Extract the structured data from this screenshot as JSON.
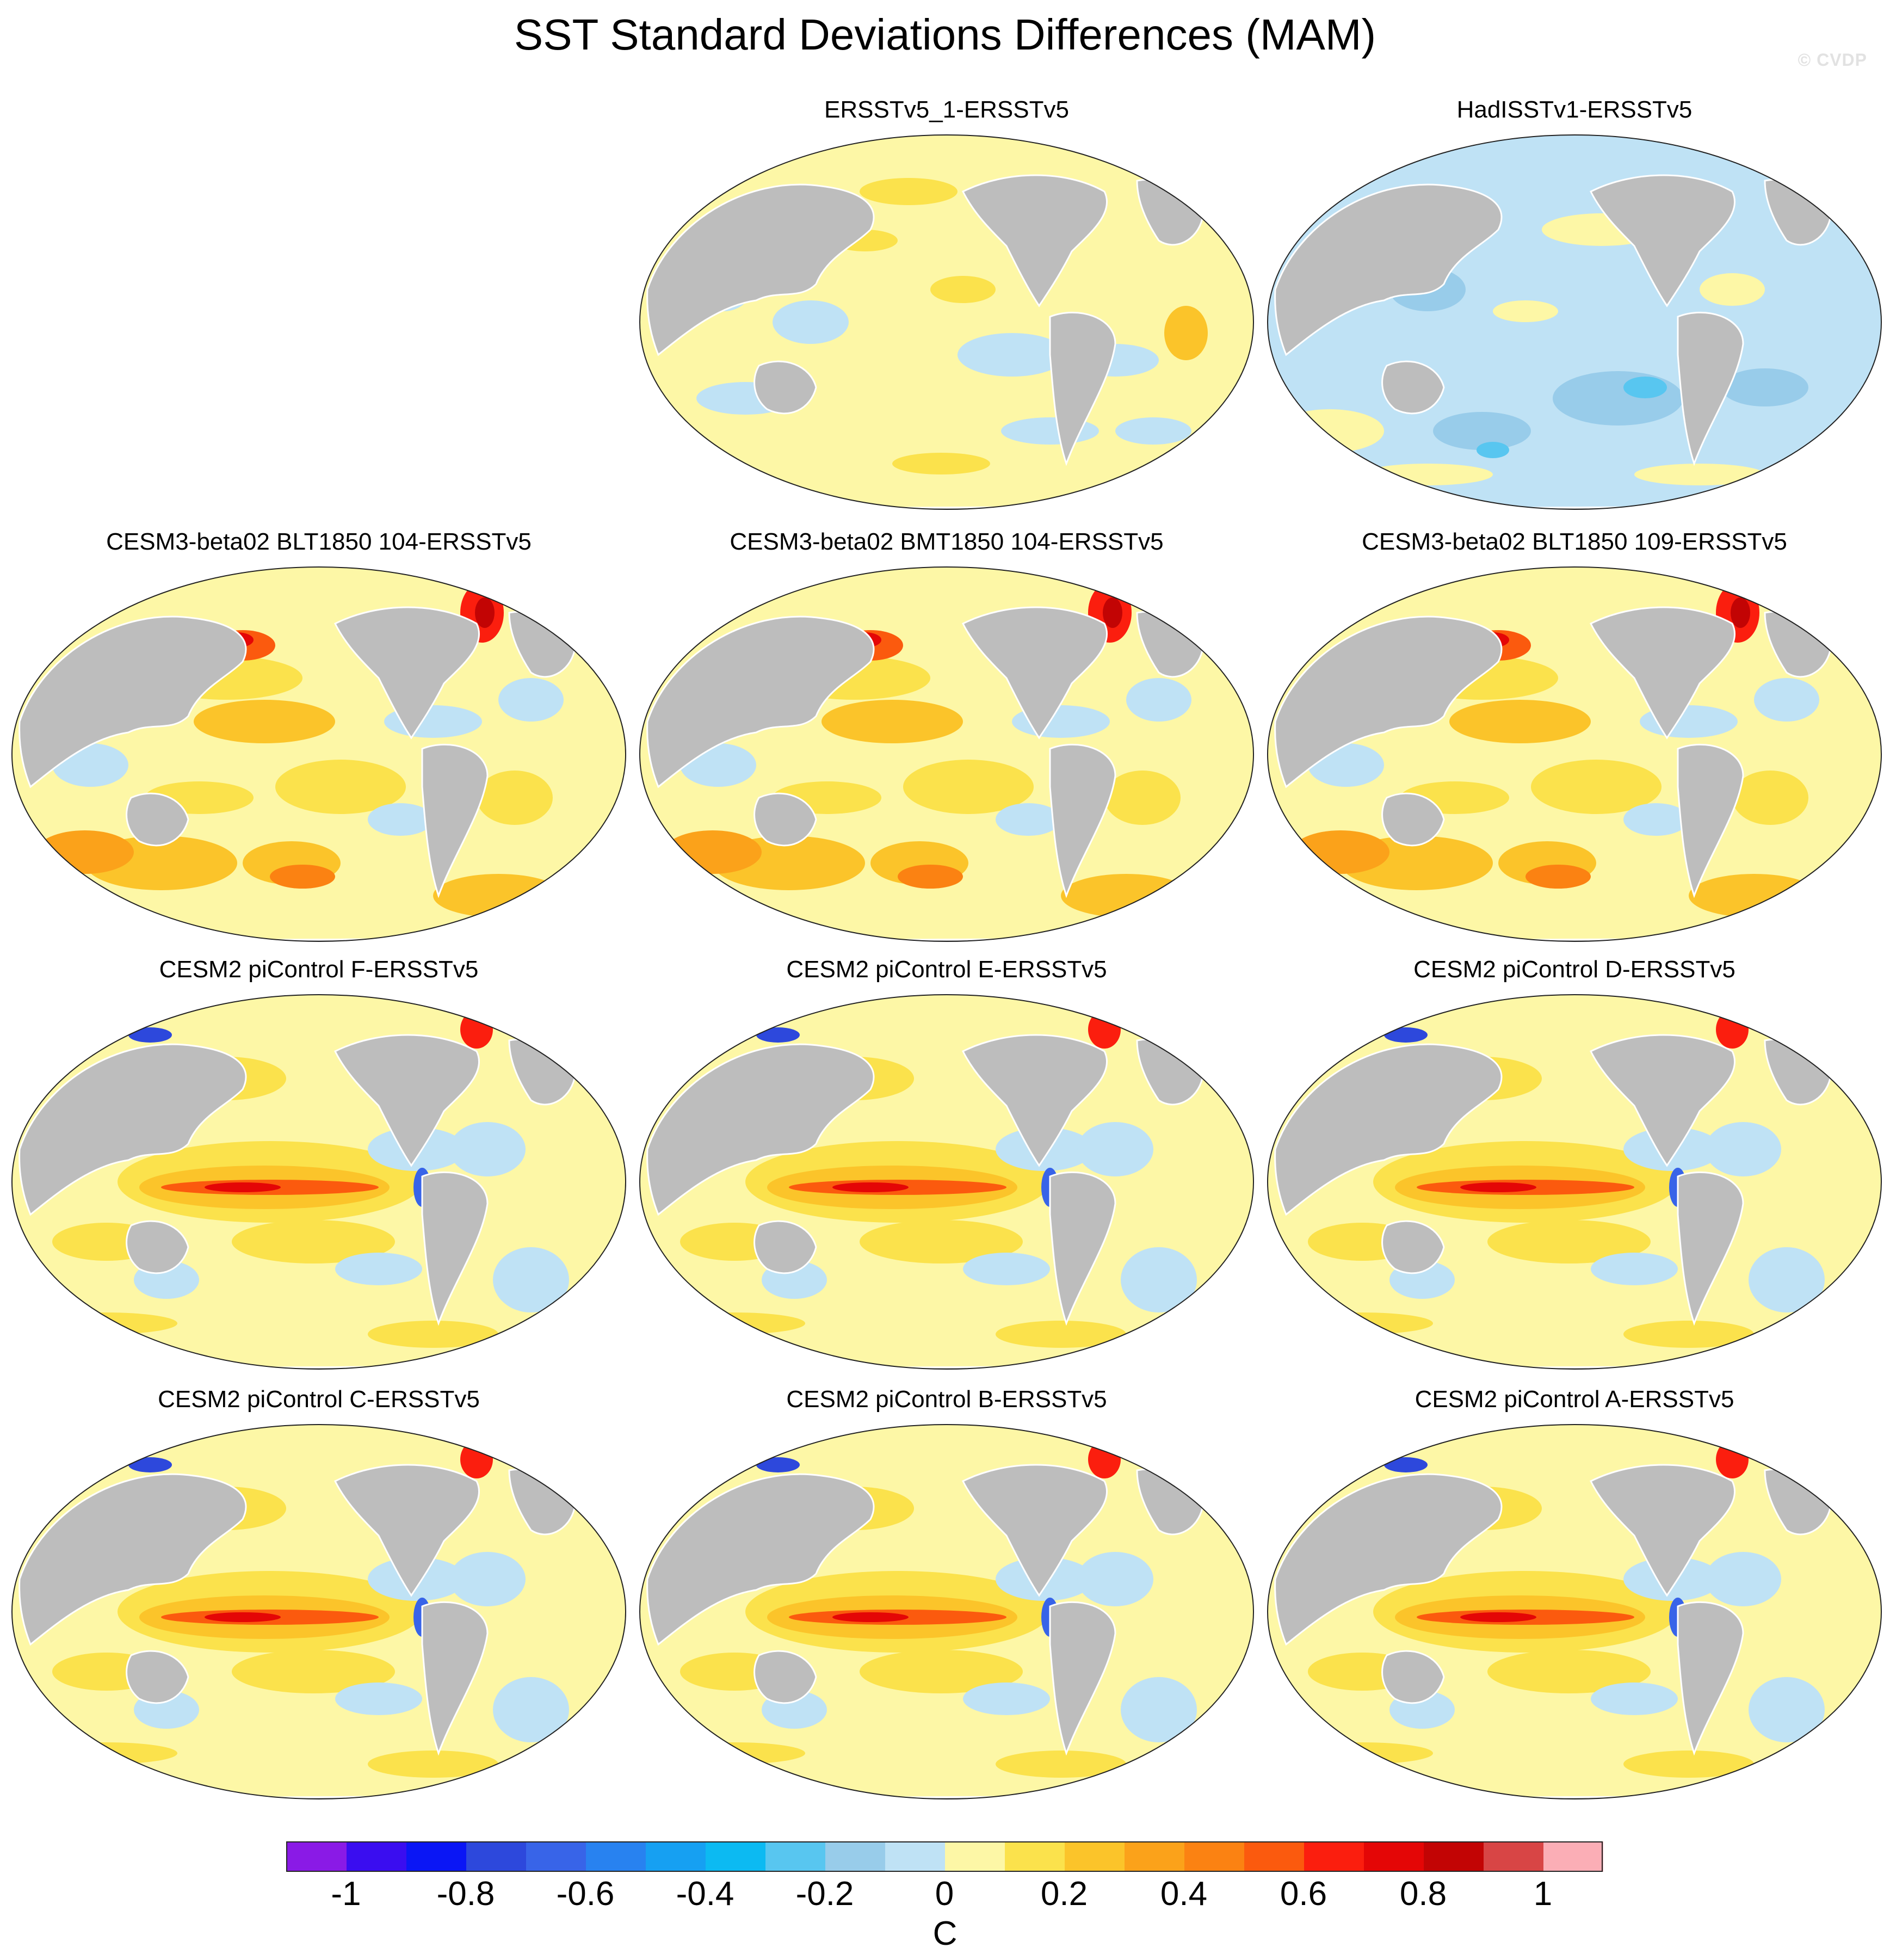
{
  "title": "SST Standard Deviations Differences (MAM)",
  "watermark": "© CVDP",
  "panels": [
    {
      "label": "ERSSTv5_1-ERSSTv5",
      "pattern": "obs-small"
    },
    {
      "label": "HadISSTv1-ERSSTv5",
      "pattern": "obs-negative"
    },
    {
      "label": "CESM3-beta02 BLT1850 104-ERSSTv5",
      "pattern": "cesm3"
    },
    {
      "label": "CESM3-beta02 BMT1850 104-ERSSTv5",
      "pattern": "cesm3"
    },
    {
      "label": "CESM3-beta02 BLT1850 109-ERSSTv5",
      "pattern": "cesm3"
    },
    {
      "label": "CESM2 piControl F-ERSSTv5",
      "pattern": "cesm2"
    },
    {
      "label": "CESM2 piControl E-ERSSTv5",
      "pattern": "cesm2"
    },
    {
      "label": "CESM2 piControl D-ERSSTv5",
      "pattern": "cesm2"
    },
    {
      "label": "CESM2 piControl C-ERSSTv5",
      "pattern": "cesm2"
    },
    {
      "label": "CESM2 piControl B-ERSSTv5",
      "pattern": "cesm2"
    },
    {
      "label": "CESM2 piControl A-ERSSTv5",
      "pattern": "cesm2"
    }
  ],
  "colorbar": {
    "colors": [
      "#8a1ae6",
      "#3a0df0",
      "#0a16f5",
      "#2d48dc",
      "#3864e8",
      "#2882f0",
      "#16a0f2",
      "#0cbaf2",
      "#58c6f0",
      "#98ccea",
      "#bfe2f5",
      "#fdf7a6",
      "#fbe24c",
      "#fbc42a",
      "#fba21a",
      "#fb8212",
      "#fb5a0e",
      "#fb1e0e",
      "#e40606",
      "#c20404",
      "#d84545",
      "#fbaeb6"
    ],
    "tick_labels": [
      "-1",
      "-0.8",
      "-0.6",
      "-0.4",
      "-0.2",
      "0",
      "0.2",
      "0.4",
      "0.6",
      "0.8",
      "1"
    ],
    "unit": "C",
    "min": -1.1,
    "max": 1.1,
    "step": 0.1
  }
}
